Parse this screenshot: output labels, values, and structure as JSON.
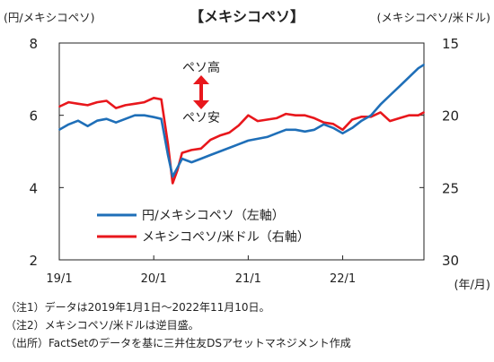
{
  "chart_data": {
    "type": "line",
    "title": "【メキシコペソ】",
    "left_axis_label": "(円/メキシコペソ)",
    "right_axis_label": "(メキシコペソ/米ドル)",
    "x_unit_label": "(年/月)",
    "x_ticks": [
      "19/1",
      "20/1",
      "21/1",
      "22/1"
    ],
    "left_ylim": [
      2,
      8
    ],
    "left_ticks": [
      "8",
      "6",
      "4",
      "2"
    ],
    "right_ylim": [
      15,
      30
    ],
    "right_inverted": true,
    "right_ticks": [
      "15",
      "20",
      "25",
      "30"
    ],
    "grid": false,
    "legend_position": "lower-center",
    "annotation": {
      "top": "ペソ高",
      "bottom": "ペソ安"
    },
    "colors": {
      "jpy_per_mxn": "#1f6fb8",
      "mxn_per_usd": "#e8171c",
      "arrow": "#e8171c"
    },
    "series": [
      {
        "name": "円/メキシコペソ（左軸）",
        "axis": "left",
        "x": [
          2019.0,
          2019.1,
          2019.2,
          2019.3,
          2019.4,
          2019.5,
          2019.6,
          2019.7,
          2019.8,
          2019.9,
          2020.0,
          2020.08,
          2020.15,
          2020.2,
          2020.25,
          2020.3,
          2020.35,
          2020.4,
          2020.5,
          2020.6,
          2020.7,
          2020.8,
          2020.9,
          2021.0,
          2021.1,
          2021.2,
          2021.3,
          2021.4,
          2021.5,
          2021.6,
          2021.7,
          2021.8,
          2021.9,
          2022.0,
          2022.1,
          2022.2,
          2022.3,
          2022.4,
          2022.5,
          2022.6,
          2022.7,
          2022.8,
          2022.86
        ],
        "values": [
          5.6,
          5.75,
          5.85,
          5.7,
          5.85,
          5.9,
          5.8,
          5.9,
          6.0,
          6.0,
          5.95,
          5.9,
          4.9,
          4.3,
          4.55,
          4.8,
          4.75,
          4.7,
          4.8,
          4.9,
          5.0,
          5.1,
          5.2,
          5.3,
          5.35,
          5.4,
          5.5,
          5.6,
          5.6,
          5.55,
          5.6,
          5.75,
          5.65,
          5.5,
          5.65,
          5.85,
          6.0,
          6.3,
          6.55,
          6.8,
          7.05,
          7.3,
          7.4
        ]
      },
      {
        "name": "メキシコペソ/米ドル（右軸）",
        "axis": "right",
        "x": [
          2019.0,
          2019.1,
          2019.2,
          2019.3,
          2019.4,
          2019.5,
          2019.6,
          2019.7,
          2019.8,
          2019.9,
          2020.0,
          2020.08,
          2020.15,
          2020.2,
          2020.25,
          2020.3,
          2020.35,
          2020.4,
          2020.5,
          2020.6,
          2020.7,
          2020.8,
          2020.9,
          2021.0,
          2021.1,
          2021.2,
          2021.3,
          2021.4,
          2021.5,
          2021.6,
          2021.7,
          2021.8,
          2021.9,
          2022.0,
          2022.1,
          2022.2,
          2022.3,
          2022.4,
          2022.5,
          2022.6,
          2022.7,
          2022.8,
          2022.86
        ],
        "values": [
          19.4,
          19.1,
          19.2,
          19.3,
          19.1,
          19.0,
          19.5,
          19.3,
          19.2,
          19.1,
          18.8,
          18.9,
          22.0,
          24.7,
          23.8,
          22.6,
          22.5,
          22.4,
          22.3,
          21.7,
          21.4,
          21.2,
          20.7,
          20.0,
          20.4,
          20.3,
          20.2,
          19.9,
          20.0,
          20.0,
          20.2,
          20.5,
          20.6,
          21.0,
          20.3,
          20.1,
          20.1,
          19.8,
          20.4,
          20.2,
          20.0,
          20.0,
          19.8
        ]
      }
    ]
  },
  "notes": [
    "（注1）データは2019年1月1日～2022年11月10日。",
    "（注2）メキシコペソ/米ドルは逆目盛。",
    "（出所）FactSetのデータを基に三井住友DSアセットマネジメント作成"
  ]
}
